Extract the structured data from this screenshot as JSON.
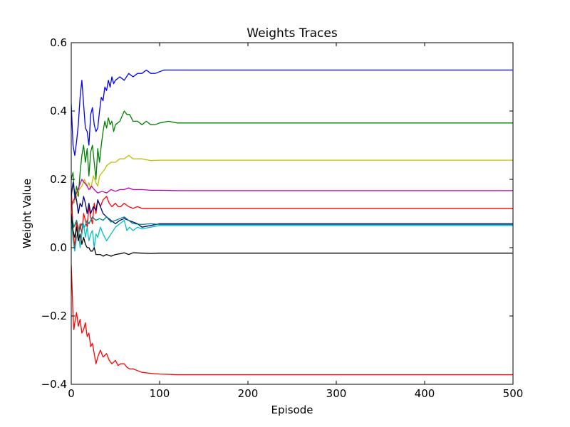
{
  "chart_data": {
    "type": "line",
    "title": "Weights Traces",
    "xlabel": "Episode",
    "ylabel": "Weight Value",
    "xlim": [
      0,
      500
    ],
    "ylim": [
      -0.4,
      0.6
    ],
    "xticks": [
      0,
      100,
      200,
      300,
      400,
      500
    ],
    "xtick_labels": [
      "0",
      "100",
      "200",
      "300",
      "400",
      "500"
    ],
    "yticks": [
      -0.4,
      -0.2,
      0.0,
      0.2,
      0.4,
      0.6
    ],
    "ytick_labels": [
      "−0.4",
      "−0.2",
      "0.0",
      "0.2",
      "0.4",
      "0.6"
    ],
    "grid": false,
    "series": [
      {
        "name": "blue",
        "color": "#0000ff",
        "x": [
          0,
          2,
          4,
          6,
          8,
          10,
          12,
          14,
          16,
          18,
          20,
          22,
          24,
          26,
          28,
          30,
          32,
          34,
          36,
          38,
          40,
          42,
          44,
          46,
          48,
          50,
          55,
          60,
          65,
          70,
          75,
          80,
          85,
          90,
          95,
          100,
          105,
          110,
          120,
          140,
          200,
          300,
          400,
          500
        ],
        "y": [
          0.42,
          0.3,
          0.27,
          0.31,
          0.36,
          0.44,
          0.49,
          0.42,
          0.35,
          0.34,
          0.3,
          0.39,
          0.41,
          0.36,
          0.34,
          0.35,
          0.4,
          0.44,
          0.43,
          0.47,
          0.46,
          0.49,
          0.47,
          0.5,
          0.48,
          0.49,
          0.5,
          0.49,
          0.51,
          0.5,
          0.51,
          0.51,
          0.52,
          0.51,
          0.51,
          0.515,
          0.52,
          0.52,
          0.52,
          0.52,
          0.52,
          0.52,
          0.52,
          0.52
        ]
      },
      {
        "name": "green",
        "color": "#008000",
        "x": [
          0,
          2,
          4,
          6,
          8,
          10,
          12,
          14,
          16,
          18,
          20,
          22,
          24,
          26,
          28,
          30,
          32,
          34,
          36,
          38,
          40,
          42,
          44,
          46,
          48,
          50,
          55,
          60,
          63,
          66,
          70,
          75,
          80,
          85,
          90,
          95,
          100,
          110,
          120,
          140,
          200,
          300,
          400,
          500
        ],
        "y": [
          0.2,
          0.22,
          0.14,
          0.18,
          0.15,
          0.22,
          0.27,
          0.3,
          0.25,
          0.29,
          0.21,
          0.28,
          0.3,
          0.25,
          0.2,
          0.29,
          0.25,
          0.3,
          0.34,
          0.37,
          0.35,
          0.38,
          0.36,
          0.37,
          0.34,
          0.36,
          0.37,
          0.4,
          0.39,
          0.39,
          0.37,
          0.37,
          0.36,
          0.37,
          0.36,
          0.36,
          0.365,
          0.37,
          0.365,
          0.365,
          0.365,
          0.365,
          0.365,
          0.365
        ]
      },
      {
        "name": "yellow",
        "color": "#bfbf00",
        "x": [
          0,
          3,
          6,
          9,
          12,
          15,
          18,
          20,
          22,
          25,
          28,
          30,
          32,
          35,
          38,
          40,
          45,
          50,
          55,
          60,
          65,
          70,
          75,
          80,
          90,
          100,
          120,
          200,
          300,
          400,
          500
        ],
        "y": [
          0.14,
          0.13,
          0.15,
          0.17,
          0.18,
          0.2,
          0.18,
          0.19,
          0.17,
          0.21,
          0.19,
          0.18,
          0.21,
          0.22,
          0.23,
          0.24,
          0.25,
          0.25,
          0.26,
          0.26,
          0.27,
          0.26,
          0.26,
          0.26,
          0.255,
          0.256,
          0.256,
          0.256,
          0.256,
          0.256,
          0.256
        ]
      },
      {
        "name": "magenta",
        "color": "#bf00bf",
        "x": [
          0,
          3,
          6,
          9,
          12,
          15,
          18,
          20,
          23,
          26,
          30,
          35,
          40,
          45,
          50,
          55,
          60,
          65,
          70,
          80,
          90,
          100,
          120,
          200,
          300,
          400,
          500
        ],
        "y": [
          0.12,
          0.14,
          0.16,
          0.18,
          0.2,
          0.19,
          0.18,
          0.17,
          0.18,
          0.17,
          0.16,
          0.165,
          0.16,
          0.17,
          0.165,
          0.17,
          0.17,
          0.175,
          0.17,
          0.17,
          0.168,
          0.168,
          0.167,
          0.167,
          0.167,
          0.167,
          0.167
        ]
      },
      {
        "name": "red",
        "color": "#ff0000",
        "x": [
          0,
          2,
          4,
          6,
          8,
          10,
          12,
          14,
          16,
          18,
          20,
          22,
          24,
          26,
          28,
          30,
          33,
          36,
          40,
          43,
          46,
          50,
          53,
          56,
          60,
          65,
          70,
          75,
          80,
          90,
          100,
          120,
          200,
          300,
          400,
          500
        ],
        "y": [
          0.18,
          0.05,
          0.0,
          0.08,
          0.03,
          0.07,
          0.04,
          0.1,
          0.08,
          0.06,
          0.12,
          0.09,
          0.07,
          0.13,
          0.1,
          0.14,
          0.12,
          0.14,
          0.15,
          0.13,
          0.12,
          0.13,
          0.12,
          0.12,
          0.13,
          0.12,
          0.115,
          0.12,
          0.115,
          0.115,
          0.115,
          0.115,
          0.115,
          0.115,
          0.115,
          0.115
        ]
      },
      {
        "name": "dark-navy",
        "color": "#000080",
        "x": [
          0,
          2,
          4,
          6,
          8,
          10,
          12,
          14,
          16,
          18,
          20,
          22,
          25,
          28,
          30,
          33,
          36,
          40,
          45,
          50,
          55,
          60,
          65,
          70,
          75,
          80,
          90,
          100,
          120,
          200,
          300,
          400,
          500
        ],
        "y": [
          0.15,
          0.19,
          0.16,
          0.14,
          0.1,
          0.13,
          0.12,
          0.15,
          0.13,
          0.1,
          0.13,
          0.1,
          0.12,
          0.11,
          0.14,
          0.12,
          0.1,
          0.09,
          0.08,
          0.07,
          0.08,
          0.085,
          0.08,
          0.075,
          0.07,
          0.06,
          0.065,
          0.07,
          0.07,
          0.07,
          0.07,
          0.07,
          0.07
        ]
      },
      {
        "name": "teal",
        "color": "#008080",
        "x": [
          0,
          3,
          6,
          9,
          12,
          15,
          18,
          20,
          24,
          28,
          32,
          36,
          40,
          45,
          50,
          55,
          60,
          65,
          70,
          80,
          90,
          100,
          120,
          200,
          300,
          400,
          500
        ],
        "y": [
          0.1,
          0.06,
          0.08,
          0.05,
          0.07,
          0.06,
          0.08,
          0.07,
          0.09,
          0.08,
          0.085,
          0.08,
          0.09,
          0.075,
          0.08,
          0.085,
          0.09,
          0.08,
          0.07,
          0.068,
          0.07,
          0.068,
          0.068,
          0.068,
          0.068,
          0.068,
          0.068
        ]
      },
      {
        "name": "cyan",
        "color": "#00bfbf",
        "x": [
          0,
          2,
          4,
          6,
          8,
          10,
          12,
          14,
          16,
          18,
          20,
          22,
          24,
          26,
          28,
          30,
          33,
          36,
          40,
          45,
          50,
          55,
          60,
          63,
          66,
          70,
          75,
          80,
          90,
          100,
          120,
          200,
          300,
          400,
          500
        ],
        "y": [
          0.09,
          0.02,
          -0.01,
          0.03,
          0.05,
          0.0,
          0.04,
          0.07,
          0.03,
          0.06,
          0.02,
          0.04,
          0.05,
          0.0,
          0.04,
          0.03,
          0.06,
          0.04,
          0.02,
          0.04,
          0.06,
          0.07,
          0.08,
          0.05,
          0.06,
          0.05,
          0.06,
          0.055,
          0.06,
          0.065,
          0.065,
          0.065,
          0.065,
          0.065,
          0.065
        ]
      },
      {
        "name": "black",
        "color": "#000000",
        "x": [
          0,
          2,
          4,
          6,
          8,
          10,
          12,
          14,
          16,
          18,
          20,
          22,
          24,
          26,
          28,
          30,
          33,
          36,
          40,
          45,
          50,
          55,
          60,
          65,
          70,
          80,
          90,
          100,
          120,
          200,
          300,
          400,
          500
        ],
        "y": [
          0.1,
          0.05,
          0.03,
          0.06,
          0.02,
          0.04,
          0.01,
          0.03,
          0.01,
          0.0,
          0.0,
          -0.01,
          -0.01,
          0.0,
          -0.02,
          -0.02,
          -0.02,
          -0.025,
          -0.02,
          -0.025,
          -0.02,
          -0.018,
          -0.015,
          -0.02,
          -0.015,
          -0.016,
          -0.017,
          -0.016,
          -0.016,
          -0.016,
          -0.016,
          -0.016,
          -0.016
        ]
      },
      {
        "name": "red-lower",
        "color": "#ff0000",
        "x": [
          0,
          1,
          2,
          3,
          4,
          6,
          8,
          10,
          12,
          14,
          16,
          18,
          20,
          22,
          24,
          26,
          28,
          30,
          33,
          36,
          40,
          43,
          46,
          50,
          53,
          56,
          60,
          63,
          66,
          70,
          75,
          80,
          90,
          100,
          120,
          200,
          300,
          400,
          500
        ],
        "y": [
          -0.05,
          -0.12,
          -0.2,
          -0.24,
          -0.22,
          -0.19,
          -0.23,
          -0.21,
          -0.25,
          -0.24,
          -0.22,
          -0.26,
          -0.25,
          -0.29,
          -0.28,
          -0.31,
          -0.34,
          -0.32,
          -0.3,
          -0.32,
          -0.31,
          -0.33,
          -0.34,
          -0.33,
          -0.345,
          -0.34,
          -0.34,
          -0.35,
          -0.355,
          -0.355,
          -0.36,
          -0.365,
          -0.368,
          -0.37,
          -0.372,
          -0.372,
          -0.372,
          -0.372,
          -0.372
        ]
      }
    ]
  }
}
